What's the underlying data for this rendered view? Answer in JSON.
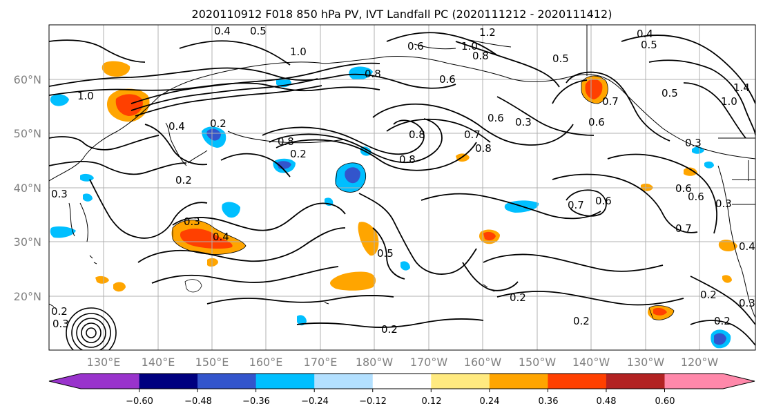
{
  "map": {
    "title": "2020110912 F018 850 hPa PV, IVT Landfall PC (2020111212 - 2020111412)",
    "lon_labels": [
      "130°E",
      "140°E",
      "150°E",
      "160°E",
      "170°E",
      "180°W",
      "170°W",
      "160°W",
      "150°W",
      "140°W",
      "130°W",
      "120°W"
    ],
    "lat_labels": [
      "60°N",
      "50°N",
      "40°N",
      "30°N",
      "20°N"
    ],
    "colorbar": {
      "tick_labels": [
        "−0.60",
        "−0.48",
        "−0.36",
        "−0.24",
        "−0.12",
        "0.12",
        "0.24",
        "0.36",
        "0.48",
        "0.60"
      ],
      "colors": [
        "#9933cc",
        "#000080",
        "#3355cc",
        "#00bfff",
        "#b3e0ff",
        "#ffffff",
        "#ffea80",
        "#ffa500",
        "#ff4000",
        "#b22222",
        "#ff88aa"
      ]
    },
    "contour_labels": [
      "0.4",
      "0.5",
      "1.0",
      "0.8",
      "0.6",
      "1.2",
      "1.0",
      "0.8",
      "0.6",
      "0.5",
      "0.4",
      "0.5",
      "0.7",
      "0.3",
      "0.6",
      "0.5",
      "1.4",
      "1.0",
      "0.4",
      "0.2",
      "0.2",
      "0.8",
      "0.8",
      "0.8",
      "0.7",
      "0.8",
      "0.6",
      "0.3",
      "0.7",
      "0.6",
      "0.6",
      "0.6",
      "0.3",
      "0.3",
      "0.4",
      "0.5",
      "0.7",
      "0.4",
      "0.2",
      "0.3",
      "0.2",
      "0.2",
      "0.2",
      "0.2",
      "0.2",
      "0.3",
      "0.2",
      "0.3",
      "1.0"
    ]
  }
}
